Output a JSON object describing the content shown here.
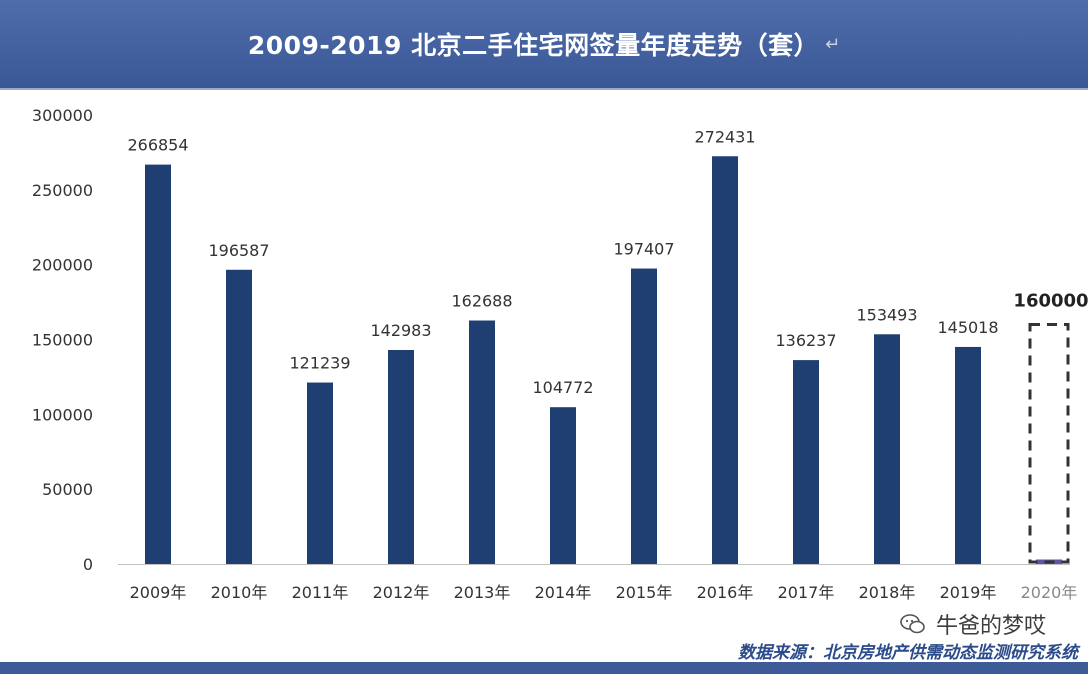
{
  "header": {
    "title": "2009-2019 北京二手住宅网签量年度走势（套）",
    "return_mark": "↵"
  },
  "chart_data": {
    "type": "bar",
    "title": "2009-2019 北京二手住宅网签量年度走势（套）",
    "categories": [
      "2009年",
      "2010年",
      "2011年",
      "2012年",
      "2013年",
      "2014年",
      "2015年",
      "2016年",
      "2017年",
      "2018年",
      "2019年",
      "2020年"
    ],
    "values": [
      266854,
      196587,
      121239,
      142983,
      162688,
      104772,
      197407,
      272431,
      136237,
      153493,
      145018,
      3000
    ],
    "data_labels": [
      "266854",
      "196587",
      "121239",
      "142983",
      "162688",
      "104772",
      "197407",
      "272431",
      "136237",
      "153493",
      "145018",
      ""
    ],
    "forecast": {
      "category": "2020年",
      "value": 160000,
      "label": "160000"
    },
    "ylim": [
      0,
      300000
    ],
    "yticks": [
      0,
      50000,
      100000,
      150000,
      200000,
      250000,
      300000
    ],
    "ytick_labels": [
      "0",
      "50000",
      "100000",
      "150000",
      "200000",
      "250000",
      "300000"
    ],
    "xlabel": "",
    "ylabel": "",
    "grid": false,
    "colors": {
      "bar": "#1f3f73",
      "bar_2020": "#5b57a4",
      "forecast_box": "#333333",
      "axis_text": "#333333"
    }
  },
  "watermark": {
    "text": "牛爸的梦哎",
    "icon": "wechat-icon"
  },
  "source": {
    "text": "数据来源：北京房地产供需动态监测研究系统"
  }
}
